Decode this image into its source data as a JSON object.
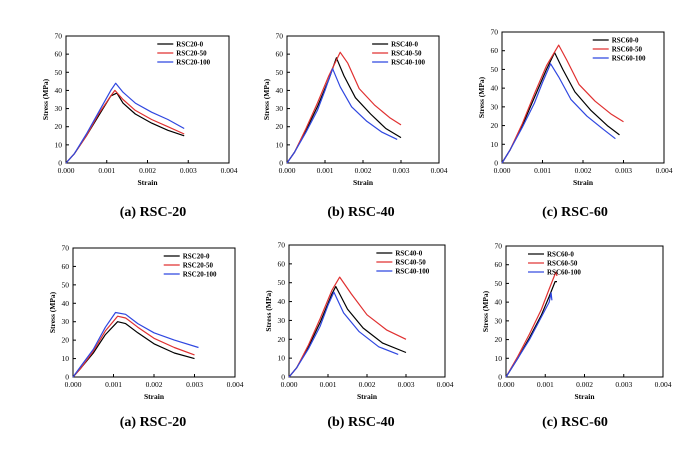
{
  "chart_data": [
    {
      "type": "line",
      "xlabel": "Strain",
      "ylabel": "Stress (MPa)",
      "xlim": [
        0,
        0.004
      ],
      "ylim": [
        0,
        70
      ],
      "xticks": [
        "0.000",
        "0.001",
        "0.002",
        "0.003",
        "0.004"
      ],
      "yticks": [
        "0",
        "10",
        "20",
        "30",
        "40",
        "50",
        "60",
        "70"
      ],
      "legend_position": "top-right",
      "caption": "(a) RSC-20",
      "series": [
        {
          "name": "RSC20-0",
          "color": "#000000",
          "x": [
            0,
            0.0002,
            0.0005,
            0.0008,
            0.0011,
            0.00125,
            0.0014,
            0.0017,
            0.0021,
            0.0025,
            0.0029
          ],
          "y": [
            0,
            5,
            15,
            26,
            37,
            38.5,
            33,
            27,
            22,
            18,
            15
          ]
        },
        {
          "name": "RSC20-50",
          "color": "#e03030",
          "x": [
            0,
            0.0002,
            0.0005,
            0.0008,
            0.0011,
            0.0012,
            0.0014,
            0.0017,
            0.0021,
            0.0025,
            0.0029
          ],
          "y": [
            0,
            5,
            15,
            27,
            37,
            40,
            35,
            29,
            24,
            20,
            16
          ]
        },
        {
          "name": "RSC20-100",
          "color": "#2f47e0",
          "x": [
            0,
            0.0002,
            0.0005,
            0.0008,
            0.0011,
            0.00122,
            0.0014,
            0.0017,
            0.0021,
            0.0025,
            0.0029
          ],
          "y": [
            0,
            5,
            16,
            28,
            40,
            44,
            39,
            33,
            28,
            24,
            19
          ]
        }
      ]
    },
    {
      "type": "line",
      "xlabel": "Strain",
      "ylabel": "Stress (MPa)",
      "xlim": [
        0,
        0.004
      ],
      "ylim": [
        0,
        70
      ],
      "xticks": [
        "0.000",
        "0.001",
        "0.002",
        "0.003",
        "0.004"
      ],
      "yticks": [
        "0",
        "10",
        "20",
        "30",
        "40",
        "50",
        "60",
        "70"
      ],
      "legend_position": "top-right",
      "caption": "(b) RSC-40",
      "series": [
        {
          "name": "RSC40-0",
          "color": "#000000",
          "x": [
            0,
            0.0002,
            0.0005,
            0.0008,
            0.0011,
            0.0013,
            0.0015,
            0.0018,
            0.0022,
            0.0026,
            0.003
          ],
          "y": [
            0,
            6,
            18,
            31,
            46,
            58,
            48,
            36,
            27,
            19,
            14
          ]
        },
        {
          "name": "RSC40-50",
          "color": "#e03030",
          "x": [
            0,
            0.0002,
            0.0005,
            0.0008,
            0.0011,
            0.0014,
            0.0016,
            0.0019,
            0.0023,
            0.0027,
            0.003
          ],
          "y": [
            0,
            6,
            19,
            33,
            48,
            61,
            55,
            41,
            32,
            25,
            21
          ]
        },
        {
          "name": "RSC40-100",
          "color": "#2f47e0",
          "x": [
            0,
            0.0002,
            0.0005,
            0.0008,
            0.001,
            0.0012,
            0.0014,
            0.0017,
            0.0021,
            0.0025,
            0.0029
          ],
          "y": [
            0,
            6,
            17,
            29,
            40,
            52,
            42,
            31,
            23,
            17,
            13
          ]
        }
      ]
    },
    {
      "type": "line",
      "xlabel": "Strain",
      "ylabel": "Stress (MPa)",
      "xlim": [
        0,
        0.004
      ],
      "ylim": [
        0,
        70
      ],
      "xticks": [
        "0.000",
        "0.001",
        "0.002",
        "0.003",
        "0.004"
      ],
      "yticks": [
        "0",
        "10",
        "20",
        "30",
        "40",
        "50",
        "60",
        "70"
      ],
      "legend_position": "top-right",
      "caption": "(c) RSC-60",
      "series": [
        {
          "name": "RSC60-0",
          "color": "#000000",
          "x": [
            0,
            0.0002,
            0.0005,
            0.0008,
            0.0011,
            0.0013,
            0.0015,
            0.0018,
            0.0022,
            0.0026,
            0.0029
          ],
          "y": [
            0,
            7,
            20,
            35,
            50,
            59,
            50,
            38,
            28,
            20,
            15
          ]
        },
        {
          "name": "RSC60-50",
          "color": "#e03030",
          "x": [
            0,
            0.0002,
            0.0005,
            0.0008,
            0.0011,
            0.0014,
            0.0016,
            0.0019,
            0.0023,
            0.0027,
            0.003
          ],
          "y": [
            0,
            7,
            21,
            37,
            52,
            63,
            55,
            42,
            33,
            26,
            22
          ]
        },
        {
          "name": "RSC60-100",
          "color": "#2f47e0",
          "x": [
            0,
            0.0002,
            0.0005,
            0.0008,
            0.001,
            0.0012,
            0.0014,
            0.0017,
            0.0021,
            0.0025,
            0.0028
          ],
          "y": [
            0,
            7,
            19,
            32,
            43,
            53,
            46,
            34,
            25,
            18,
            13
          ]
        }
      ]
    },
    {
      "type": "line",
      "xlabel": "Strain",
      "ylabel": "Stress (MPa)",
      "xlim": [
        0,
        0.004
      ],
      "ylim": [
        0,
        70
      ],
      "xticks": [
        "0.000",
        "0.001",
        "0.002",
        "0.003",
        "0.004"
      ],
      "yticks": [
        "0",
        "10",
        "20",
        "30",
        "40",
        "50",
        "60",
        "70"
      ],
      "legend_position": "top-right",
      "caption": "(a) RSC-20",
      "series": [
        {
          "name": "RSC20-0",
          "color": "#000000",
          "x": [
            0,
            0.0002,
            0.0005,
            0.0008,
            0.0011,
            0.0013,
            0.0016,
            0.002,
            0.0025,
            0.003
          ],
          "y": [
            0,
            5,
            13,
            23,
            30,
            29,
            24,
            18,
            13,
            10
          ]
        },
        {
          "name": "RSC20-50",
          "color": "#e03030",
          "x": [
            0,
            0.0002,
            0.0005,
            0.0008,
            0.0011,
            0.0013,
            0.0016,
            0.002,
            0.0025,
            0.003
          ],
          "y": [
            0,
            5,
            14,
            25,
            33,
            32,
            27,
            21,
            16,
            12
          ]
        },
        {
          "name": "RSC20-100",
          "color": "#2f47e0",
          "x": [
            0,
            0.0002,
            0.0005,
            0.0008,
            0.00105,
            0.0013,
            0.0016,
            0.002,
            0.0025,
            0.0031
          ],
          "y": [
            0,
            6,
            15,
            27,
            35,
            34,
            29,
            24,
            20,
            16
          ]
        }
      ]
    },
    {
      "type": "line",
      "xlabel": "Strain",
      "ylabel": "Stress (MPa)",
      "xlim": [
        0,
        0.004
      ],
      "ylim": [
        0,
        70
      ],
      "xticks": [
        "0.000",
        "0.001",
        "0.002",
        "0.003",
        "0.004"
      ],
      "yticks": [
        "0",
        "10",
        "20",
        "30",
        "40",
        "50",
        "60",
        "70"
      ],
      "legend_position": "top-right",
      "caption": "(b) RSC-40",
      "series": [
        {
          "name": "RSC40-0",
          "color": "#000000",
          "x": [
            0,
            0.0002,
            0.0005,
            0.0008,
            0.0011,
            0.0012,
            0.0015,
            0.0019,
            0.0024,
            0.003
          ],
          "y": [
            0,
            5,
            16,
            29,
            44,
            48,
            36,
            26,
            18,
            13
          ]
        },
        {
          "name": "RSC40-50",
          "color": "#e03030",
          "x": [
            0,
            0.0002,
            0.0005,
            0.0008,
            0.0011,
            0.0013,
            0.0016,
            0.002,
            0.0025,
            0.003
          ],
          "y": [
            0,
            5,
            17,
            31,
            46,
            53,
            44,
            33,
            25,
            20
          ]
        },
        {
          "name": "RSC40-100",
          "color": "#2f47e0",
          "x": [
            0,
            0.0002,
            0.0005,
            0.0008,
            0.001,
            0.00115,
            0.0014,
            0.0018,
            0.0023,
            0.0028
          ],
          "y": [
            0,
            5,
            15,
            27,
            38,
            45,
            34,
            24,
            16,
            12
          ]
        }
      ]
    },
    {
      "type": "line",
      "xlabel": "Strain",
      "ylabel": "Stress (MPa)",
      "xlim": [
        0,
        0.004
      ],
      "ylim": [
        0,
        70
      ],
      "xticks": [
        "0.000",
        "0.001",
        "0.002",
        "0.003",
        "0.004"
      ],
      "yticks": [
        "0",
        "10",
        "20",
        "30",
        "40",
        "50",
        "60",
        "70"
      ],
      "legend_position": "top-left",
      "caption": "(c) RSC-60",
      "series": [
        {
          "name": "RSC60-0",
          "color": "#000000",
          "x": [
            0,
            0.0003,
            0.0006,
            0.0009,
            0.0011,
            0.00125,
            0.0013
          ],
          "y": [
            0,
            10,
            21,
            33,
            43,
            51,
            51
          ]
        },
        {
          "name": "RSC60-50",
          "color": "#e03030",
          "x": [
            0,
            0.0003,
            0.0006,
            0.0009,
            0.0011,
            0.00127,
            0.0013
          ],
          "y": [
            0,
            11,
            23,
            36,
            47,
            56,
            54
          ]
        },
        {
          "name": "RSC60-100",
          "color": "#2f47e0",
          "x": [
            0,
            0.0003,
            0.0006,
            0.0009,
            0.0011,
            0.00115,
            0.00117
          ],
          "y": [
            0,
            10,
            20,
            32,
            40,
            45,
            41
          ]
        }
      ]
    }
  ]
}
